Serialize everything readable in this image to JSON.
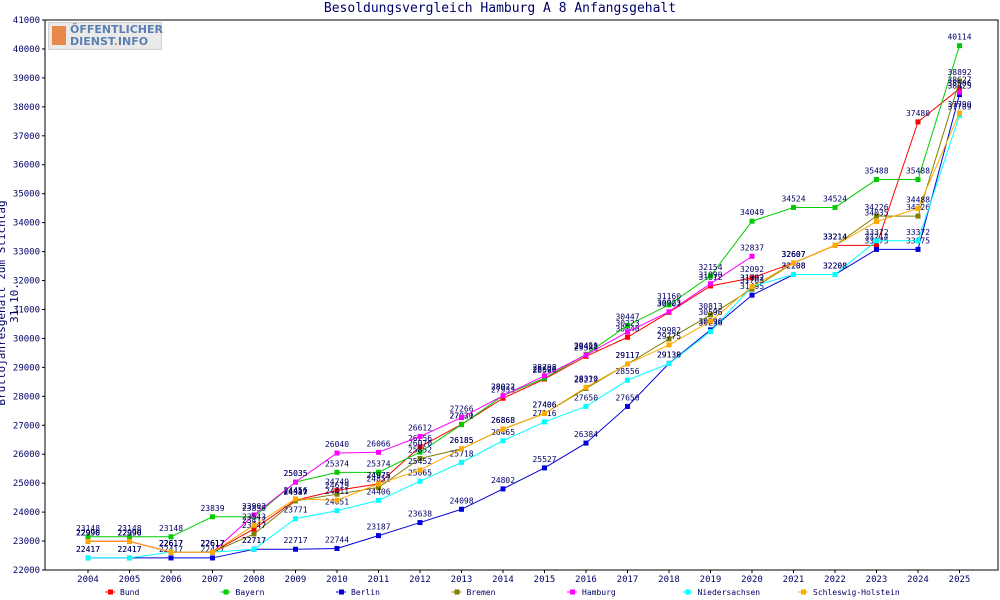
{
  "chart_data": {
    "type": "line",
    "title": "Besoldungsvergleich Hamburg A 8 Anfangsgehalt",
    "ylabel": "Bruttojahresgehalt zum Stichtag 31.10.",
    "xlabel": "",
    "x": [
      "2004",
      "2005",
      "2006",
      "2007",
      "2008",
      "2009",
      "2010",
      "2011",
      "2012",
      "2013",
      "2014",
      "2015",
      "2016",
      "2017",
      "2018",
      "2019",
      "2020",
      "2021",
      "2022",
      "2023",
      "2024",
      "2025"
    ],
    "ylim": [
      22000,
      41000
    ],
    "yticks": [
      22000,
      23000,
      24000,
      25000,
      26000,
      27000,
      28000,
      29000,
      30000,
      31000,
      32000,
      33000,
      34000,
      35000,
      36000,
      37000,
      38000,
      39000,
      40000,
      41000
    ],
    "grid": false,
    "legend_position": "bottom",
    "series": [
      {
        "name": "Bund",
        "color": "#ff0000",
        "values": [
          22990,
          22990,
          22617,
          22617,
          23417,
          24411,
          24749,
          24975,
          26256,
          27030,
          27933,
          28596,
          29382,
          30040,
          30902,
          31812,
          32092,
          32607,
          33214,
          33214,
          37480,
          38627
        ]
      },
      {
        "name": "Bayern",
        "color": "#00cc00",
        "values": [
          23148,
          23148,
          23148,
          23839,
          23839,
          25035,
          25374,
          25374,
          26070,
          27021,
          28022,
          28626,
          29451,
          30447,
          31160,
          32154,
          34049,
          34524,
          34524,
          35488,
          35488,
          40114
        ]
      },
      {
        "name": "Berlin",
        "color": "#0000dd",
        "values": [
          22417,
          22417,
          22417,
          22417,
          22717,
          22717,
          22744,
          23187,
          23638,
          24098,
          24802,
          25527,
          26384,
          27650,
          29138,
          30296,
          31495,
          32208,
          32208,
          33075,
          33075,
          38425
        ]
      },
      {
        "name": "Bremen",
        "color": "#808000",
        "values": [
          22990,
          22990,
          22617,
          22617,
          23247,
          24387,
          24619,
          24852,
          25852,
          26185,
          26868,
          27406,
          28272,
          29117,
          29982,
          30813,
          31703,
          32607,
          33214,
          34226,
          34226,
          38892
        ]
      },
      {
        "name": "Hamburg",
        "color": "#ff00ff",
        "values": [
          22990,
          22990,
          22617,
          22617,
          23902,
          25035,
          26040,
          26066,
          26612,
          27266,
          28022,
          28708,
          29428,
          30223,
          30923,
          31890,
          32837,
          null,
          null,
          null,
          null,
          38506
        ]
      },
      {
        "name": "Niedersachsen",
        "color": "#00ffff",
        "values": [
          22417,
          22417,
          22617,
          22617,
          22717,
          23771,
          24051,
          24406,
          25065,
          25718,
          26465,
          27116,
          27650,
          28556,
          29130,
          30236,
          31792,
          32208,
          32208,
          33372,
          33372,
          37709
        ]
      },
      {
        "name": "Schleswig-Holstein",
        "color": "#ffaa00",
        "values": [
          22990,
          22990,
          22617,
          22617,
          23543,
          24456,
          24411,
          24975,
          25452,
          26185,
          26868,
          27406,
          28310,
          29117,
          29775,
          30596,
          31792,
          32607,
          33214,
          34035,
          34488,
          37790
        ]
      }
    ]
  },
  "branding": {
    "logo_line1": "ÖFFENTLICHER",
    "logo_line2": "DIENST",
    "logo_dot": ".",
    "logo_ext": "INFO",
    "accent": "#e8884a",
    "brand_blue": "#5b7fb0"
  }
}
